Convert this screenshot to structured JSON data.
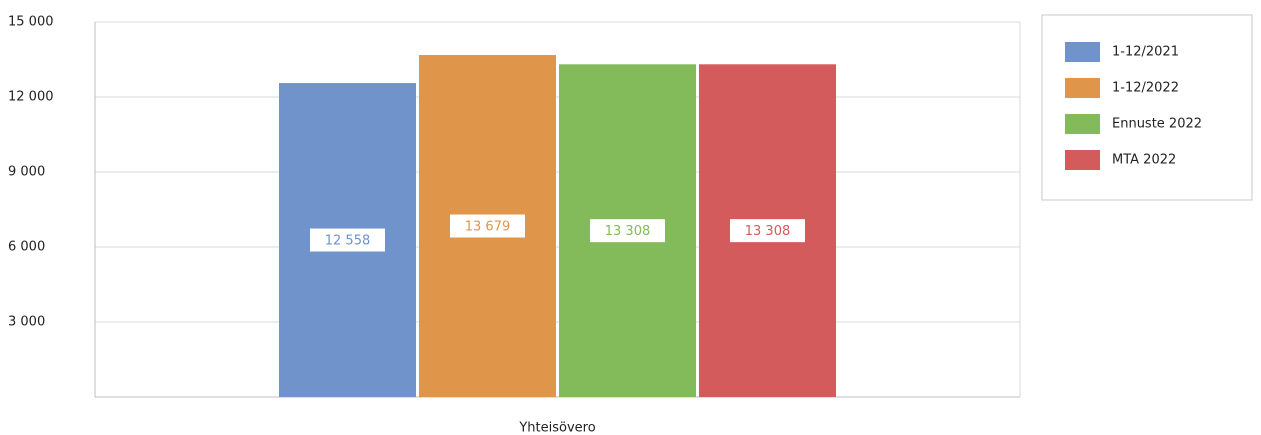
{
  "chart_data": {
    "type": "bar",
    "categories": [
      "Yhteisövero"
    ],
    "series": [
      {
        "name": "1-12/2021",
        "color": "#7093cc",
        "values": [
          12558
        ],
        "value_labels": [
          "12 558"
        ]
      },
      {
        "name": "1-12/2022",
        "color": "#e0964a",
        "values": [
          13679
        ],
        "value_labels": [
          "13 679"
        ]
      },
      {
        "name": "Ennuste 2022",
        "color": "#83ba5a",
        "values": [
          13308
        ],
        "value_labels": [
          "13 308"
        ]
      },
      {
        "name": "MTA 2022",
        "color": "#d35b5b",
        "values": [
          13308
        ],
        "value_labels": [
          "13 308"
        ]
      }
    ],
    "ylim": [
      0,
      15000
    ],
    "yticks": [
      {
        "value": 3000,
        "label": "3 000"
      },
      {
        "value": 6000,
        "label": "6 000"
      },
      {
        "value": 9000,
        "label": "9 000"
      },
      {
        "value": 12000,
        "label": "12 000"
      },
      {
        "value": 15000,
        "label": "15 000"
      }
    ],
    "grid": true,
    "legend": "right"
  }
}
